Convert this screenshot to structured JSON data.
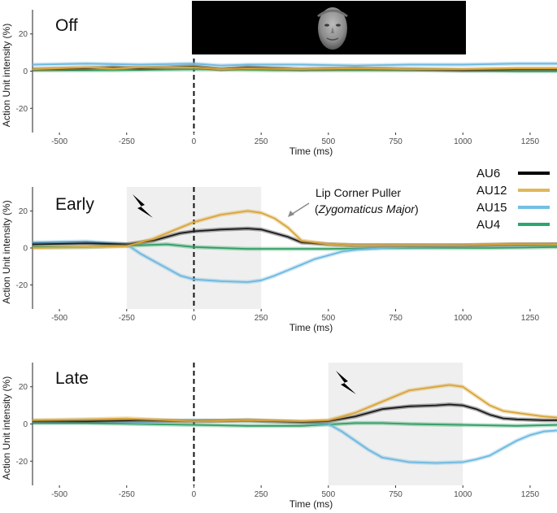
{
  "chart_data": [
    {
      "panel": "off",
      "type": "line",
      "title": "Off",
      "xlabel": "Time (ms)",
      "ylabel": "Action Unit intensity (%)",
      "xlim": [
        -600,
        1350
      ],
      "ylim": [
        -33,
        33
      ],
      "xticks": [
        -500,
        -250,
        0,
        250,
        500,
        750,
        1000,
        1250
      ],
      "yticks": [
        20,
        0,
        -20
      ],
      "stim_onset_ms": 0,
      "series": [
        {
          "name": "AU15",
          "x": [
            -600,
            -400,
            -200,
            0,
            100,
            200,
            400,
            600,
            800,
            1000,
            1200,
            1350
          ],
          "y": [
            3.5,
            4,
            3.5,
            4,
            3,
            3.5,
            3.5,
            3,
            3.5,
            3.5,
            4,
            4
          ]
        },
        {
          "name": "AU12",
          "x": [
            -600,
            -400,
            -300,
            -200,
            0,
            100,
            200,
            400,
            600,
            800,
            1000,
            1200,
            1350
          ],
          "y": [
            1,
            2,
            1.5,
            2,
            2,
            1,
            1.5,
            1,
            1.5,
            1,
            1,
            1.5,
            1.5
          ]
        },
        {
          "name": "AU6",
          "x": [
            -600,
            -400,
            -300,
            -200,
            0,
            100,
            200,
            400,
            600,
            800,
            1000,
            1200,
            1350
          ],
          "y": [
            1,
            1.5,
            2,
            1.5,
            2.5,
            1,
            2,
            1,
            1.5,
            1,
            0.5,
            1,
            1
          ]
        },
        {
          "name": "AU4",
          "x": [
            -600,
            -300,
            0,
            300,
            600,
            900,
            1200,
            1350
          ],
          "y": [
            0.5,
            0.5,
            1,
            0.5,
            0.5,
            0.5,
            0,
            0
          ]
        }
      ]
    },
    {
      "panel": "early",
      "type": "line",
      "title": "Early",
      "xlabel": "Time (ms)",
      "ylabel": "Action Unit intensity (%)",
      "xlim": [
        -600,
        1350
      ],
      "ylim": [
        -33,
        33
      ],
      "xticks": [
        -500,
        -250,
        0,
        250,
        500,
        750,
        1000,
        1250
      ],
      "yticks": [
        20,
        0,
        -20
      ],
      "shade_ms": [
        -250,
        250
      ],
      "stim_onset_ms": 0,
      "annotation": {
        "line1": "Lip Corner Puller",
        "line2": "Zygomaticus Major"
      },
      "series": [
        {
          "name": "AU12",
          "x": [
            -600,
            -400,
            -250,
            -150,
            -50,
            0,
            100,
            200,
            250,
            300,
            350,
            400,
            500,
            600,
            800,
            1000,
            1200,
            1350
          ],
          "y": [
            0,
            0.5,
            1,
            5,
            11,
            14,
            18,
            20,
            19,
            16,
            11,
            4,
            2,
            1.5,
            1.5,
            1.5,
            2,
            2
          ]
        },
        {
          "name": "AU6",
          "x": [
            -600,
            -400,
            -250,
            -150,
            -50,
            0,
            100,
            200,
            250,
            300,
            350,
            400,
            500,
            600,
            800,
            1000,
            1200,
            1350
          ],
          "y": [
            2,
            2.5,
            2,
            4,
            8,
            9,
            10,
            10.5,
            10,
            8,
            6,
            3,
            2,
            1.5,
            1.5,
            1.5,
            2,
            2
          ]
        },
        {
          "name": "AU15",
          "x": [
            -600,
            -400,
            -250,
            -200,
            -150,
            -100,
            -50,
            0,
            100,
            200,
            250,
            300,
            350,
            400,
            450,
            500,
            550,
            600,
            700,
            800,
            1000,
            1200,
            1350
          ],
          "y": [
            3,
            3.5,
            2,
            -3,
            -7,
            -11,
            -15,
            -17,
            -18,
            -18.5,
            -17.5,
            -15,
            -12,
            -9,
            -6,
            -4,
            -2,
            -1,
            0,
            0.5,
            1,
            1.5,
            2
          ]
        },
        {
          "name": "AU4",
          "x": [
            -600,
            -400,
            -200,
            -100,
            0,
            100,
            200,
            300,
            500,
            700,
            900,
            1100,
            1350
          ],
          "y": [
            0.5,
            0.5,
            1.5,
            2,
            0.5,
            0,
            -0.5,
            -0.5,
            -0.5,
            0,
            0,
            0,
            0.5
          ]
        }
      ]
    },
    {
      "panel": "late",
      "type": "line",
      "title": "Late",
      "xlabel": "Time (ms)",
      "ylabel": "Action Unit intensity (%)",
      "xlim": [
        -600,
        1350
      ],
      "ylim": [
        -33,
        33
      ],
      "xticks": [
        -500,
        -250,
        0,
        250,
        500,
        750,
        1000,
        1250
      ],
      "yticks": [
        20,
        0,
        -20
      ],
      "shade_ms": [
        500,
        1000
      ],
      "stim_onset_ms": 0,
      "series": [
        {
          "name": "AU12",
          "x": [
            -600,
            -400,
            -250,
            -100,
            0,
            200,
            400,
            500,
            600,
            700,
            800,
            900,
            950,
            1000,
            1050,
            1100,
            1150,
            1200,
            1300,
            1350
          ],
          "y": [
            2,
            2.5,
            3,
            2,
            1.5,
            2,
            1.5,
            2,
            6,
            12,
            18,
            20,
            21,
            20,
            15,
            10,
            7,
            6,
            4,
            3.5
          ]
        },
        {
          "name": "AU6",
          "x": [
            -600,
            -400,
            -200,
            0,
            200,
            400,
            500,
            600,
            700,
            800,
            900,
            950,
            1000,
            1050,
            1100,
            1150,
            1200,
            1300,
            1350
          ],
          "y": [
            1.5,
            1.5,
            2,
            1.5,
            2,
            1,
            1.5,
            4,
            8,
            9.5,
            10,
            10.5,
            10,
            8,
            5,
            3,
            2.5,
            2,
            2
          ]
        },
        {
          "name": "AU15",
          "x": [
            -600,
            -400,
            -200,
            0,
            200,
            400,
            500,
            550,
            600,
            650,
            700,
            800,
            900,
            1000,
            1050,
            1100,
            1150,
            1200,
            1250,
            1300,
            1350
          ],
          "y": [
            1.5,
            2,
            1,
            2,
            1.5,
            1,
            0,
            -4,
            -9,
            -14,
            -18,
            -20.5,
            -21,
            -20.5,
            -19,
            -17,
            -13,
            -9,
            -6,
            -4,
            -3.5
          ]
        },
        {
          "name": "AU4",
          "x": [
            -600,
            -400,
            -200,
            0,
            200,
            400,
            600,
            700,
            800,
            1000,
            1200,
            1350
          ],
          "y": [
            0.5,
            0.5,
            0,
            -0.5,
            -1,
            -1,
            0.5,
            0.5,
            0,
            -0.5,
            -1,
            -0.5
          ]
        }
      ]
    }
  ],
  "legend": {
    "items": [
      {
        "name": "AU6",
        "color": "#000000"
      },
      {
        "name": "AU12",
        "color": "#E0B85A"
      },
      {
        "name": "AU15",
        "color": "#74BFE4"
      },
      {
        "name": "AU4",
        "color": "#2BA66E"
      }
    ]
  },
  "colors": {
    "AU6": "#1a1a1a",
    "AU12": "#D9A53A",
    "AU15": "#6CB8E0",
    "AU4": "#2E9E62",
    "shade": "#efefef"
  },
  "face_image": {
    "icon": "face-photo-icon"
  }
}
